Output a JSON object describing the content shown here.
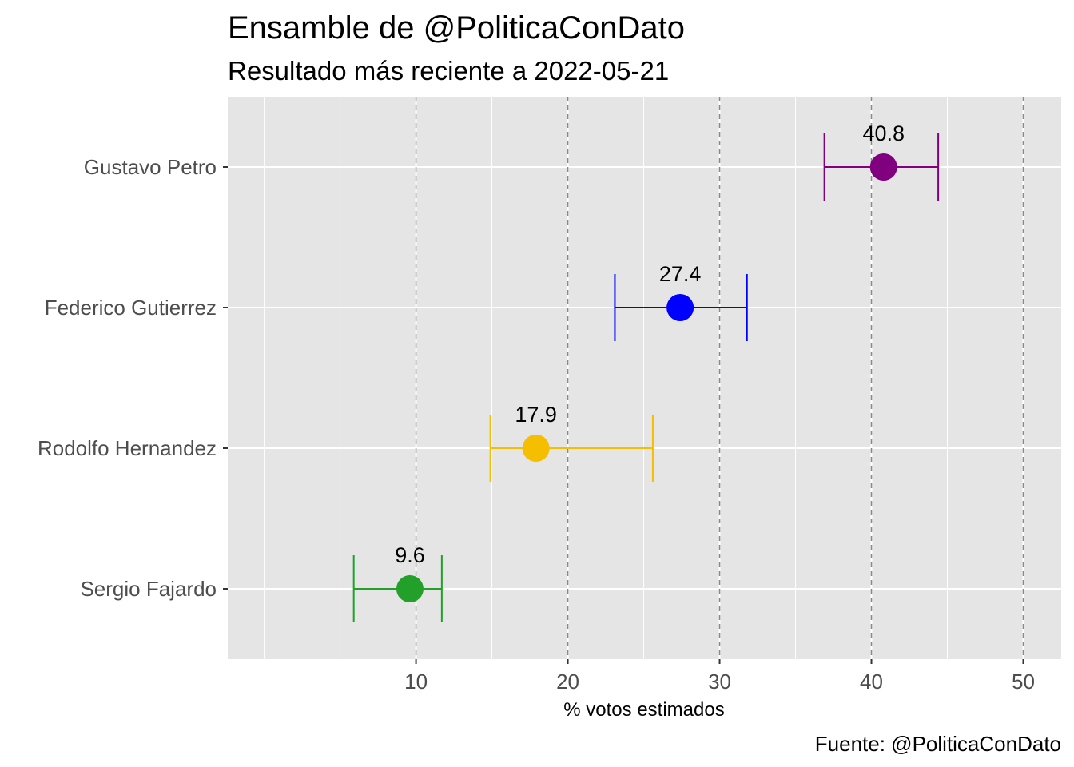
{
  "chart_data": {
    "type": "scatter",
    "title": "Ensamble de @PoliticaConDato",
    "subtitle": "Resultado más reciente a 2022-05-21",
    "caption": "Fuente: @PoliticaConDato",
    "xlabel": "% votos estimados",
    "ylabel": "",
    "xlim": [
      -2.4,
      52.5
    ],
    "xticks": [
      10,
      20,
      30,
      40,
      50
    ],
    "grid": true,
    "categories": [
      "Gustavo Petro",
      "Federico Gutierrez",
      "Rodolfo Hernandez",
      "Sergio Fajardo"
    ],
    "points": [
      {
        "name": "Gustavo Petro",
        "value": 40.8,
        "label": "40.8",
        "low": 36.9,
        "high": 44.4,
        "color": "#800080"
      },
      {
        "name": "Federico Gutierrez",
        "value": 27.4,
        "label": "27.4",
        "low": 23.1,
        "high": 31.8,
        "color": "#0000FF"
      },
      {
        "name": "Rodolfo Hernandez",
        "value": 17.9,
        "label": "17.9",
        "low": 14.9,
        "high": 25.6,
        "color": "#F5BE00"
      },
      {
        "name": "Sergio Fajardo",
        "value": 9.6,
        "label": "9.6",
        "low": 5.9,
        "high": 11.7,
        "color": "#22A02A"
      }
    ]
  }
}
